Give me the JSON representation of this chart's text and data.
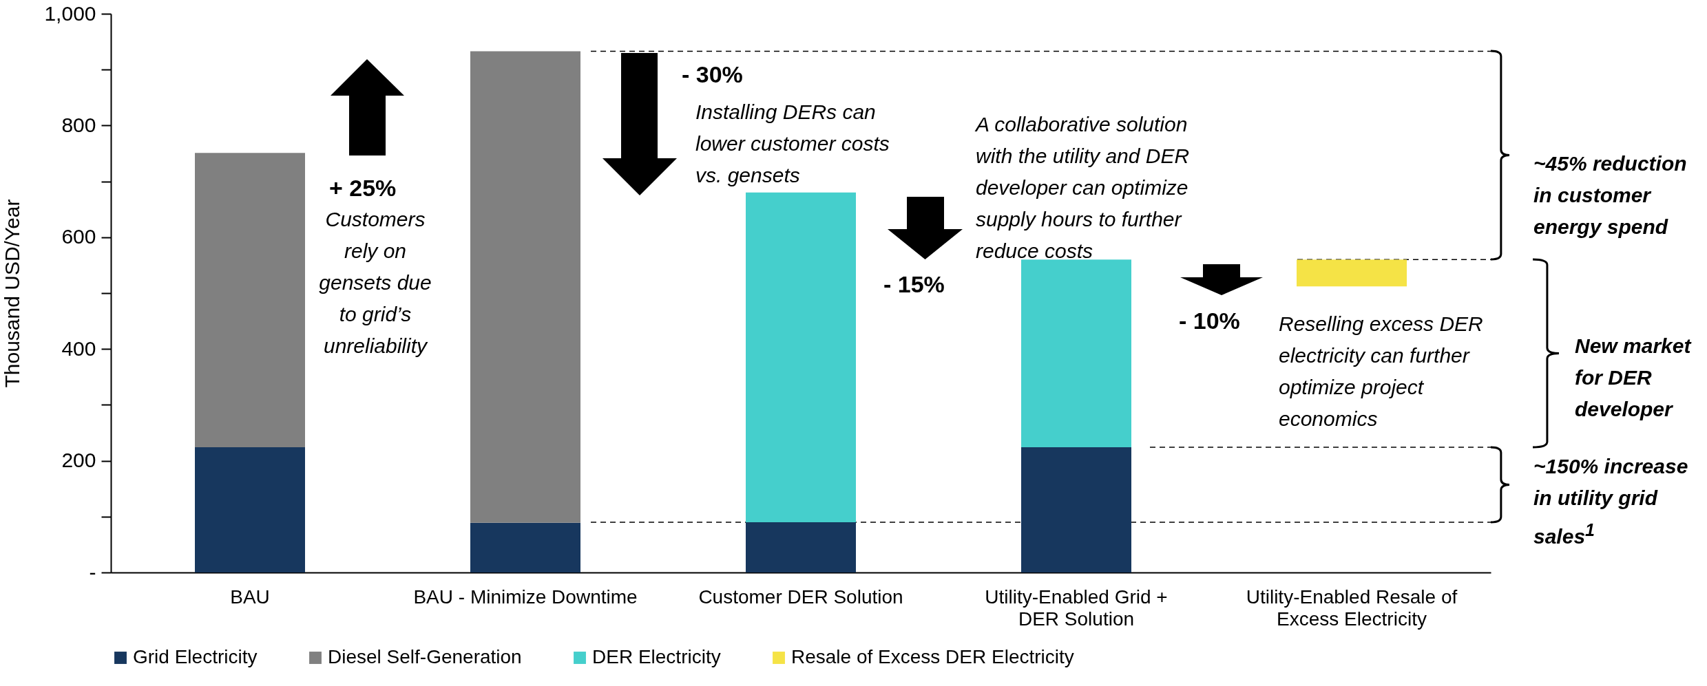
{
  "chart_data": {
    "type": "bar",
    "stacked": true,
    "ylabel": "Thousand USD/Year",
    "categories": [
      "BAU",
      "BAU - Minimize Downtime",
      "Customer DER Solution",
      "Utility-Enabled Grid + DER Solution",
      "Utility-Enabled Resale of Excess Electricity"
    ],
    "series": [
      {
        "name": "Grid Electricity",
        "color": "#17375e",
        "values": [
          224,
          89,
          90,
          224,
          null
        ]
      },
      {
        "name": "Diesel Self-Generation",
        "color": "#808080",
        "values": [
          527,
          844,
          null,
          null,
          null
        ]
      },
      {
        "name": "DER Electricity",
        "color": "#45cfcc",
        "values": [
          null,
          null,
          590,
          336,
          null
        ]
      },
      {
        "name": "Resale of Excess DER Electricity",
        "color": "#f5e346",
        "base": [
          null,
          null,
          null,
          null,
          512
        ],
        "values": [
          null,
          null,
          null,
          null,
          48
        ]
      }
    ],
    "ylim": [
      0,
      1000
    ],
    "yticks": [
      {
        "value": 0,
        "label": "-"
      },
      {
        "value": 100,
        "label": null
      },
      200,
      {
        "value": 300,
        "label": null
      },
      400,
      {
        "value": 500,
        "label": null
      },
      600,
      {
        "value": 700,
        "label": null
      },
      800,
      {
        "value": 900,
        "label": null
      },
      {
        "value": 1000,
        "label": "1,000"
      }
    ],
    "ref_lines": [
      {
        "axis": "y",
        "value": 933,
        "line_style": "dashed"
      },
      {
        "axis": "y",
        "value": 90,
        "line_style": "dashed"
      },
      {
        "axis": "y",
        "value": 560,
        "line_style": "dashed"
      },
      {
        "axis": "y",
        "value": 224,
        "line_style": "dashed"
      }
    ],
    "annotations": [
      "+ 25%",
      "Customers rely on gensets due to grid’s unreliability",
      "- 30%",
      "Installing DERs can lower customer costs vs. gensets",
      "- 15%",
      "A collaborative solution with the utility and DER developer can optimize supply hours to further reduce costs",
      "- 10%",
      "Reselling excess DER electricity can further optimize project economics",
      "~45% reduction in customer energy spend",
      "New market for DER developer",
      "~150% increase in utility grid sales$^{1}$"
    ],
    "grid": false,
    "legend": "bottom"
  }
}
